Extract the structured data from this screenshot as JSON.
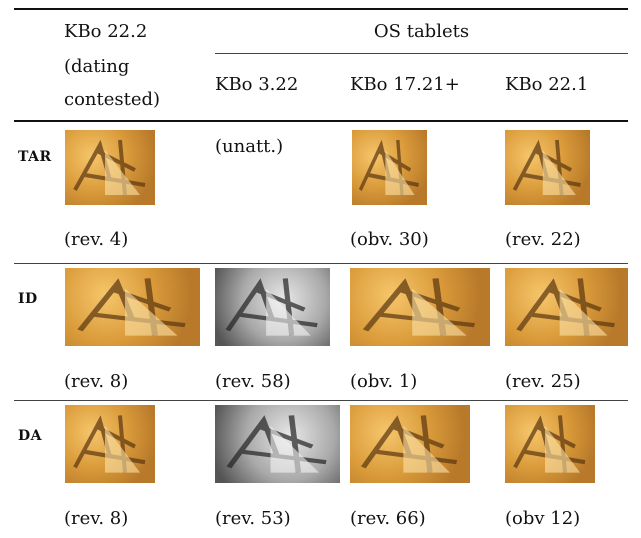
{
  "table": {
    "header": {
      "col1_lines": [
        "KBo 22.2",
        "(dating",
        "contested)"
      ],
      "group": "OS tablets",
      "subcols": [
        "KBo 3.22",
        "KBo 17.21+",
        "KBo 22.1"
      ]
    },
    "rows": [
      {
        "sign": "TAR",
        "cells": [
          {
            "caption": "(rev. 4)"
          },
          {
            "note": "(unatt.)"
          },
          {
            "caption": "(obv. 30)"
          },
          {
            "caption": "(rev. 22)"
          }
        ]
      },
      {
        "sign": "ID",
        "cells": [
          {
            "caption": "(rev. 8)"
          },
          {
            "caption": "(rev. 58)"
          },
          {
            "caption": "(obv. 1)"
          },
          {
            "caption": "(rev. 25)"
          }
        ]
      },
      {
        "sign": "DA",
        "cells": [
          {
            "caption": "(rev. 8)"
          },
          {
            "caption": "(rev. 53)"
          },
          {
            "caption": "(rev. 66)"
          },
          {
            "caption": "(obv 12)"
          }
        ]
      }
    ]
  }
}
